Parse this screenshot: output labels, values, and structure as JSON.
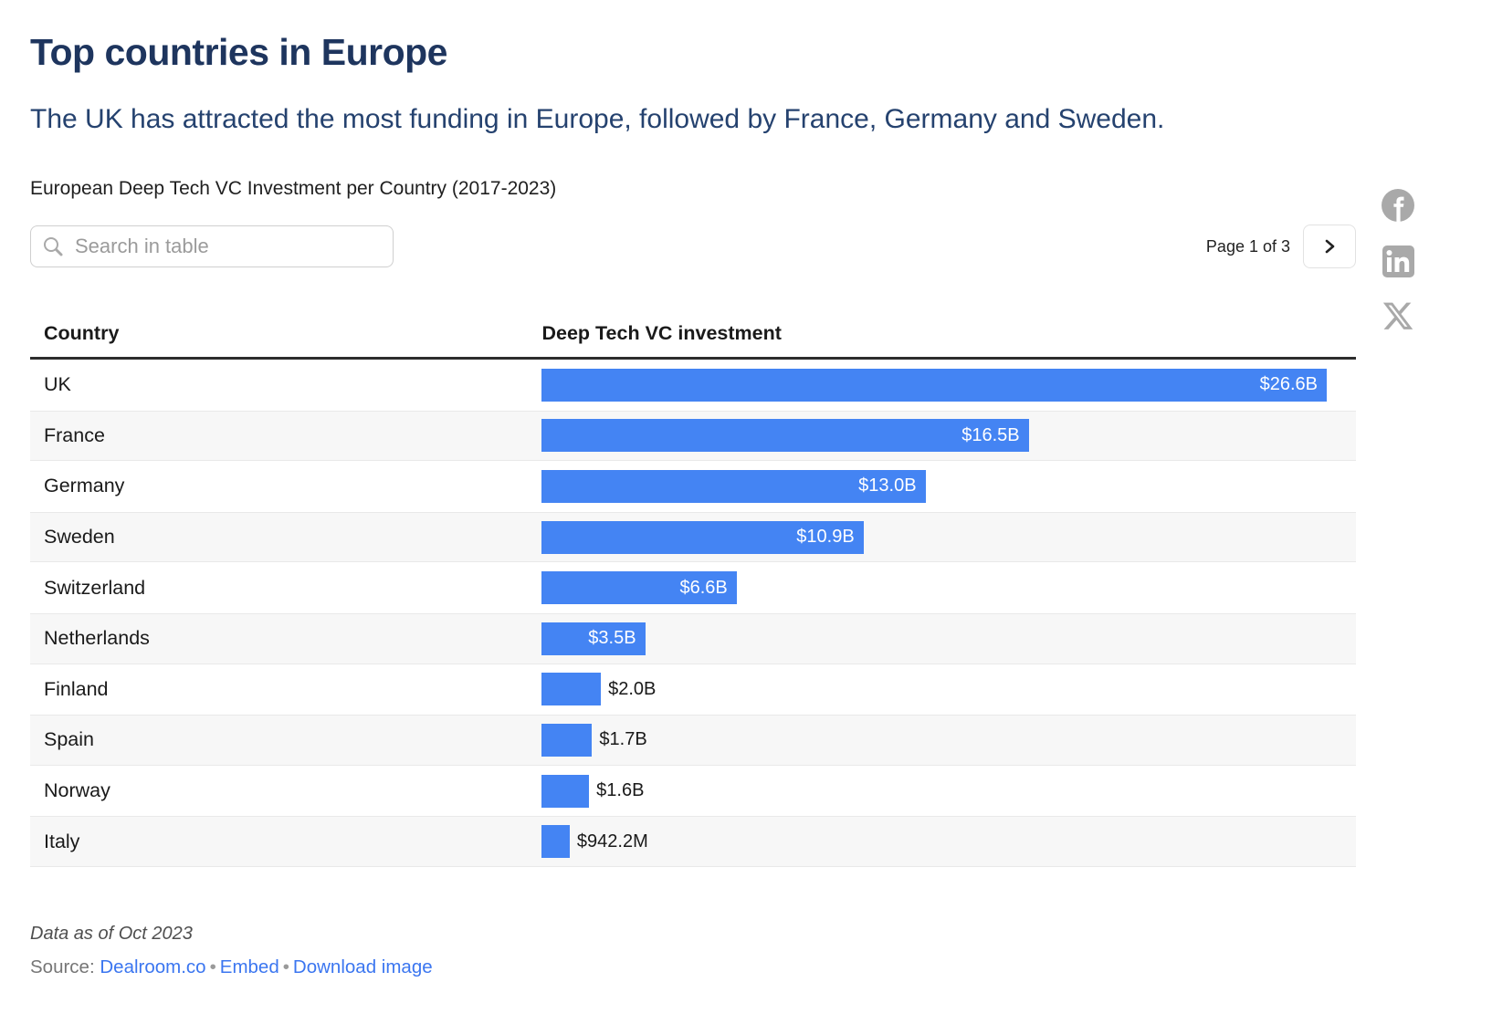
{
  "page": {
    "title": "Top countries in Europe",
    "subtitle": "The UK has attracted the most funding in Europe, followed by France, Germany and Sweden.",
    "chart_title": "European Deep Tech VC Investment per Country (2017-2023)"
  },
  "controls": {
    "search_placeholder": "Search in table",
    "pagination_text": "Page 1 of 3"
  },
  "social": {
    "facebook": "facebook-share",
    "linkedin": "linkedin-share",
    "x": "x-share"
  },
  "table": {
    "columns": [
      "Country",
      "Deep Tech VC investment"
    ],
    "max_value": 26.6,
    "rows": [
      {
        "country": "UK",
        "value": 26.6,
        "label": "$26.6B",
        "inside": true
      },
      {
        "country": "France",
        "value": 16.5,
        "label": "$16.5B",
        "inside": true
      },
      {
        "country": "Germany",
        "value": 13.0,
        "label": "$13.0B",
        "inside": true
      },
      {
        "country": "Sweden",
        "value": 10.9,
        "label": "$10.9B",
        "inside": true
      },
      {
        "country": "Switzerland",
        "value": 6.6,
        "label": "$6.6B",
        "inside": true
      },
      {
        "country": "Netherlands",
        "value": 3.5,
        "label": "$3.5B",
        "inside": true
      },
      {
        "country": "Finland",
        "value": 2.0,
        "label": "$2.0B",
        "inside": false
      },
      {
        "country": "Spain",
        "value": 1.7,
        "label": "$1.7B",
        "inside": false
      },
      {
        "country": "Norway",
        "value": 1.6,
        "label": "$1.6B",
        "inside": false
      },
      {
        "country": "Italy",
        "value": 0.9422,
        "label": "$942.2M",
        "inside": false
      }
    ]
  },
  "footer": {
    "note": "Data as of Oct 2023",
    "source_prefix": "Source:",
    "link_source": "Dealroom.co",
    "link_embed": "Embed",
    "link_download": "Download image",
    "separator": "•"
  },
  "colors": {
    "bar": "#4484f3",
    "title": "#1e355e",
    "subtitle": "#25426f",
    "stripe": "#f7f7f7",
    "social_icon": "#a9a9a9",
    "link": "#3b76f0"
  },
  "chart_data": {
    "type": "bar",
    "orientation": "horizontal",
    "title": "European Deep Tech VC Investment per Country (2017-2023)",
    "categories": [
      "UK",
      "France",
      "Germany",
      "Sweden",
      "Switzerland",
      "Netherlands",
      "Finland",
      "Spain",
      "Norway",
      "Italy"
    ],
    "values": [
      26.6,
      16.5,
      13.0,
      10.9,
      6.6,
      3.5,
      2.0,
      1.7,
      1.6,
      0.9422
    ],
    "value_labels": [
      "$26.6B",
      "$16.5B",
      "$13.0B",
      "$10.9B",
      "$6.6B",
      "$3.5B",
      "$2.0B",
      "$1.7B",
      "$1.6B",
      "$942.2M"
    ],
    "unit": "USD billions",
    "xlabel": "Deep Tech VC investment",
    "ylabel": "Country",
    "xlim": [
      0,
      26.6
    ],
    "grid": false,
    "legend": false,
    "page": "1 of 3",
    "data_note": "Data as of Oct 2023",
    "source": "Dealroom.co"
  }
}
